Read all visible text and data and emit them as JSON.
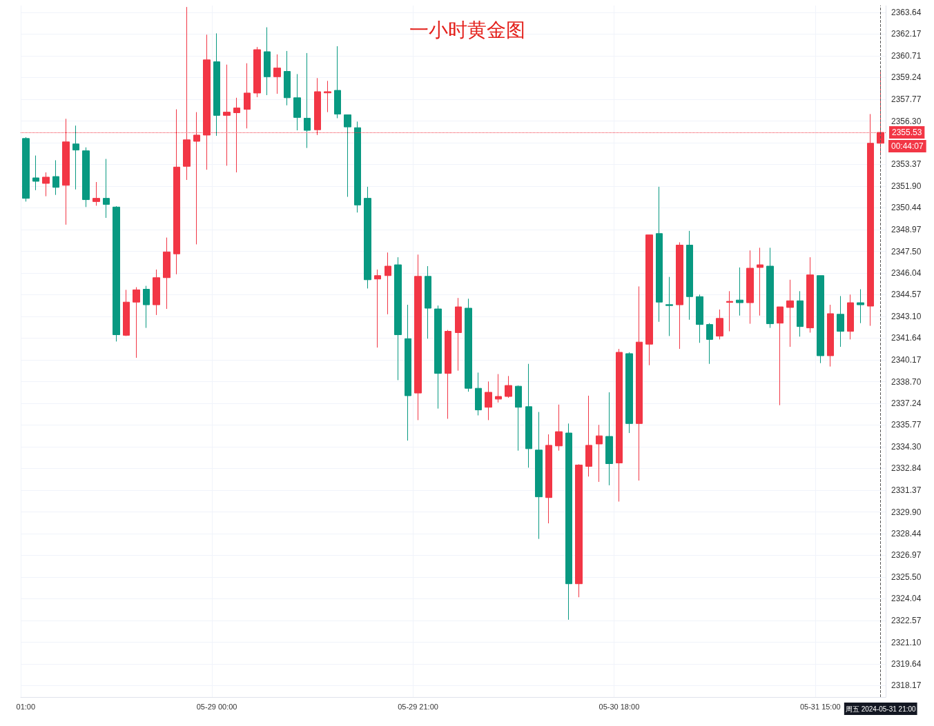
{
  "chart_data": {
    "type": "candlestick",
    "title": "一小时黄金图",
    "categories": [
      "01:00",
      null,
      null,
      null,
      null,
      null,
      null,
      null,
      null,
      null,
      null,
      null,
      null,
      null,
      null,
      null,
      null,
      null,
      null,
      "05-29 00:00",
      null,
      null,
      null,
      null,
      null,
      null,
      null,
      null,
      null,
      null,
      null,
      null,
      null,
      null,
      null,
      null,
      null,
      null,
      null,
      "05-29 21:00",
      null,
      null,
      null,
      null,
      null,
      null,
      null,
      null,
      null,
      null,
      null,
      null,
      null,
      null,
      null,
      null,
      null,
      null,
      null,
      "05-30 18:00",
      null,
      null,
      null,
      null,
      null,
      null,
      null,
      null,
      null,
      null,
      null,
      null,
      null,
      null,
      null,
      null,
      null,
      null,
      null,
      "05-31 15:00",
      null,
      null,
      null,
      null,
      null,
      "周五 2024-05-31 21:00"
    ],
    "ohlc": [
      [
        2355.12,
        2355.21,
        2350.86,
        2351.08
      ],
      [
        2352.46,
        2353.97,
        2351.63,
        2352.23
      ],
      [
        2352.09,
        2352.83,
        2351.22,
        2352.51
      ],
      [
        2352.55,
        2353.65,
        2351.31,
        2351.82
      ],
      [
        2351.96,
        2356.45,
        2349.3,
        2354.89
      ],
      [
        2354.75,
        2355.99,
        2351.68,
        2354.34
      ],
      [
        2354.29,
        2354.52,
        2350.49,
        2350.99
      ],
      [
        2350.86,
        2352.18,
        2350.58,
        2351.08
      ],
      [
        2351.08,
        2353.74,
        2349.76,
        2350.67
      ],
      [
        2350.49,
        2350.55,
        2341.41,
        2341.87
      ],
      [
        2341.83,
        2344.9,
        2341.78,
        2344.07
      ],
      [
        2344.07,
        2345.08,
        2340.31,
        2344.9
      ],
      [
        2344.94,
        2345.17,
        2342.33,
        2343.89
      ],
      [
        2343.89,
        2346.27,
        2343.2,
        2345.72
      ],
      [
        2345.72,
        2348.43,
        2343.61,
        2347.46
      ],
      [
        2347.33,
        2357.09,
        2345.95,
        2353.19
      ],
      [
        2353.24,
        2364.0,
        2352.32,
        2355.03
      ],
      [
        2354.93,
        2356.9,
        2347.97,
        2355.35
      ],
      [
        2355.35,
        2362.13,
        2353.01,
        2360.43
      ],
      [
        2360.3,
        2362.22,
        2355.3,
        2356.68
      ],
      [
        2356.68,
        2360.11,
        2353.28,
        2356.9
      ],
      [
        2356.86,
        2357.87,
        2352.83,
        2357.18
      ],
      [
        2357.09,
        2360.2,
        2355.8,
        2358.19
      ],
      [
        2358.19,
        2361.3,
        2357.91,
        2361.12
      ],
      [
        2360.98,
        2362.63,
        2358.05,
        2359.29
      ],
      [
        2359.29,
        2360.8,
        2358.14,
        2359.88
      ],
      [
        2359.65,
        2361.03,
        2357.36,
        2357.87
      ],
      [
        2357.87,
        2359.47,
        2355.67,
        2356.54
      ],
      [
        2356.49,
        2360.89,
        2354.48,
        2355.67
      ],
      [
        2355.71,
        2359.2,
        2355.35,
        2358.28
      ],
      [
        2358.2,
        2359.01,
        2356.9,
        2358.28
      ],
      [
        2358.37,
        2361.35,
        2356.49,
        2356.77
      ],
      [
        2356.72,
        2356.72,
        2351.18,
        2355.9
      ],
      [
        2355.85,
        2356.26,
        2350.12,
        2350.63
      ],
      [
        2351.08,
        2351.86,
        2344.99,
        2345.58
      ],
      [
        2345.63,
        2346.27,
        2341.0,
        2345.86
      ],
      [
        2345.86,
        2347.42,
        2343.25,
        2346.5
      ],
      [
        2346.59,
        2347.1,
        2338.8,
        2341.87
      ],
      [
        2341.6,
        2343.89,
        2334.72,
        2337.75
      ],
      [
        2337.93,
        2347.28,
        2336.1,
        2345.81
      ],
      [
        2345.81,
        2346.5,
        2341.6,
        2343.66
      ],
      [
        2343.61,
        2343.84,
        2336.88,
        2339.26
      ],
      [
        2339.26,
        2342.19,
        2336.19,
        2342.1
      ],
      [
        2342.01,
        2344.35,
        2339.44,
        2343.75
      ],
      [
        2343.66,
        2344.3,
        2338.02,
        2338.25
      ],
      [
        2338.25,
        2339.31,
        2336.42,
        2336.79
      ],
      [
        2336.97,
        2338.71,
        2336.1,
        2337.98
      ],
      [
        2337.52,
        2339.21,
        2337.29,
        2337.7
      ],
      [
        2337.7,
        2339.08,
        2337.61,
        2338.44
      ],
      [
        2338.39,
        2338.44,
        2334.04,
        2336.97
      ],
      [
        2337.01,
        2339.9,
        2332.89,
        2334.17
      ],
      [
        2334.08,
        2336.65,
        2328.08,
        2330.92
      ],
      [
        2330.87,
        2335.14,
        2329.13,
        2334.4
      ],
      [
        2334.36,
        2337.15,
        2334.04,
        2335.32
      ],
      [
        2335.23,
        2335.87,
        2322.62,
        2325.05
      ],
      [
        2325.05,
        2333.12,
        2324.14,
        2333.07
      ],
      [
        2332.98,
        2337.75,
        2332.29,
        2334.4
      ],
      [
        2334.49,
        2335.78,
        2331.93,
        2335.04
      ],
      [
        2335.0,
        2337.98,
        2331.7,
        2333.16
      ],
      [
        2333.21,
        2340.91,
        2330.6,
        2340.68
      ],
      [
        2340.59,
        2340.68,
        2335.23,
        2335.87
      ],
      [
        2335.87,
        2345.13,
        2332.02,
        2341.37
      ],
      [
        2341.23,
        2348.61,
        2339.81,
        2348.61
      ],
      [
        2348.7,
        2351.86,
        2342.74,
        2344.07
      ],
      [
        2343.9,
        2345.77,
        2341.78,
        2343.84
      ],
      [
        2343.89,
        2348.11,
        2340.91,
        2347.92
      ],
      [
        2347.92,
        2348.88,
        2342.88,
        2344.44
      ],
      [
        2344.44,
        2344.58,
        2341.32,
        2342.56
      ],
      [
        2342.56,
        2342.65,
        2339.9,
        2341.55
      ],
      [
        2341.78,
        2343.57,
        2341.55,
        2342.97
      ],
      [
        2344.05,
        2344.81,
        2342.1,
        2344.12
      ],
      [
        2344.21,
        2346.41,
        2343.16,
        2344.03
      ],
      [
        2344.03,
        2347.56,
        2342.61,
        2346.36
      ],
      [
        2346.41,
        2347.74,
        2343.16,
        2346.59
      ],
      [
        2346.5,
        2347.74,
        2342.33,
        2342.61
      ],
      [
        2342.65,
        2343.75,
        2337.11,
        2343.75
      ],
      [
        2343.71,
        2345.58,
        2341.05,
        2344.16
      ],
      [
        2344.16,
        2344.81,
        2341.74,
        2342.42
      ],
      [
        2342.33,
        2347.1,
        2342.01,
        2345.91
      ],
      [
        2345.86,
        2345.86,
        2339.95,
        2340.45
      ],
      [
        2340.45,
        2343.89,
        2339.72,
        2343.29
      ],
      [
        2343.25,
        2344.48,
        2341.05,
        2342.1
      ],
      [
        2342.1,
        2344.58,
        2341.55,
        2344.03
      ],
      [
        2344.03,
        2344.94,
        2342.65,
        2343.89
      ],
      [
        2343.8,
        2356.77,
        2342.47,
        2354.8
      ],
      [
        2354.8,
        2359.65,
        2353.97,
        2355.53
      ]
    ],
    "colors": [
      "#089981",
      "#089981",
      "#f23645",
      "#089981",
      "#f23645",
      "#089981",
      "#089981",
      "#f23645",
      "#089981",
      "#089981",
      "#f23645",
      "#f23645",
      "#089981",
      "#f23645",
      "#f23645",
      "#f23645",
      "#f23645",
      "#f23645",
      "#f23645",
      "#089981",
      "#f23645",
      "#f23645",
      "#f23645",
      "#f23645",
      "#089981",
      "#f23645",
      "#089981",
      "#089981",
      "#089981",
      "#f23645",
      "#f23645",
      "#089981",
      "#089981",
      "#089981",
      "#089981",
      "#f23645",
      "#f23645",
      "#089981",
      "#089981",
      "#f23645",
      "#089981",
      "#089981",
      "#f23645",
      "#f23645",
      "#089981",
      "#089981",
      "#f23645",
      "#f23645",
      "#f23645",
      "#089981",
      "#089981",
      "#089981",
      "#f23645",
      "#f23645",
      "#089981",
      "#f23645",
      "#f23645",
      "#f23645",
      "#089981",
      "#f23645",
      "#089981",
      "#f23645",
      "#f23645",
      "#089981",
      "#089981",
      "#f23645",
      "#089981",
      "#089981",
      "#089981",
      "#f23645",
      "#f23645",
      "#089981",
      "#f23645",
      "#f23645",
      "#089981",
      "#f23645",
      "#f23645",
      "#089981",
      "#f23645",
      "#089981",
      "#f23645",
      "#089981",
      "#f23645",
      "#089981",
      "#f23645",
      "#f23645"
    ],
    "ylim": [
      2317.4,
      2364.1
    ],
    "yticks": [
      2363.64,
      2362.17,
      2360.71,
      2359.24,
      2357.77,
      {
        "value": 2356.3,
        "label": "2356.30"
      },
      {
        "value": 2354.84,
        "label": null
      },
      2353.37,
      {
        "value": 2351.9,
        "label": "2351.90"
      },
      2350.44,
      2348.97,
      {
        "value": 2347.5,
        "label": "2347.50"
      },
      2346.04,
      2344.57,
      {
        "value": 2343.1,
        "label": "2343.10"
      },
      2341.64,
      2340.17,
      {
        "value": 2338.7,
        "label": "2338.70"
      },
      2337.24,
      2335.77,
      {
        "value": 2334.3,
        "label": "2334.30"
      },
      2332.84,
      2331.37,
      {
        "value": 2329.9,
        "label": "2329.90"
      },
      2328.44,
      2326.97,
      {
        "value": 2325.5,
        "label": "2325.50"
      },
      2324.04,
      2322.57,
      {
        "value": 2321.1,
        "label": "2321.10"
      },
      2319.64,
      2318.17
    ],
    "grid": true,
    "ref_lines": [
      {
        "axis": "y",
        "value": 2355.53,
        "label": "2355.53",
        "color": "#f23645",
        "line_style": "dotted"
      },
      {
        "axis": "x",
        "value": "周五 2024-05-31 21:00",
        "color": "#555555",
        "line_style": "dashed"
      }
    ],
    "annotations": [
      "00:44:07"
    ]
  }
}
